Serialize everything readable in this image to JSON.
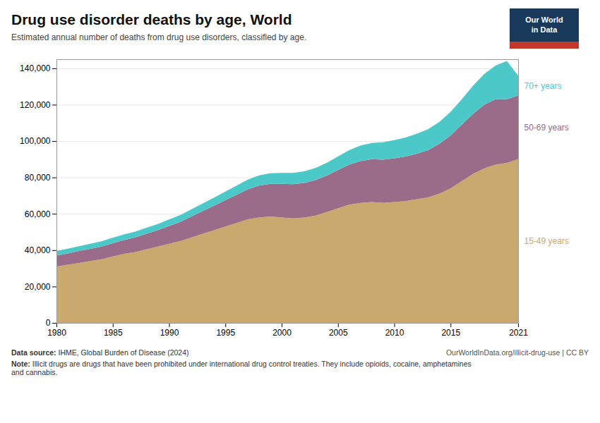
{
  "chart_data": {
    "type": "area",
    "stacked": true,
    "title": "Drug use disorder deaths by age, World",
    "subtitle": "Estimated annual number of deaths from drug use disorders, classified by age.",
    "source_label": "Data source:",
    "source": "IHME, Global Burden of Disease (2024)",
    "credit": "OurWorldInData.org/illicit-drug-use | CC BY",
    "note_label": "Note:",
    "note": "Illicit drugs are drugs that have been prohibited under international drug control treaties. They include opioids, cocaine, amphetamines\nand cannabis.",
    "logo": {
      "text": [
        "Our World",
        "in Data"
      ],
      "colors": [
        "#1a3a5c",
        "#c0392b"
      ]
    },
    "x": [
      1980,
      1981,
      1982,
      1983,
      1984,
      1985,
      1986,
      1987,
      1988,
      1989,
      1990,
      1991,
      1992,
      1993,
      1994,
      1995,
      1996,
      1997,
      1998,
      1999,
      2000,
      2001,
      2002,
      2003,
      2004,
      2005,
      2006,
      2007,
      2008,
      2009,
      2010,
      2011,
      2012,
      2013,
      2014,
      2015,
      2016,
      2017,
      2018,
      2019,
      2020,
      2021
    ],
    "series": [
      {
        "name": "15-49 years",
        "color": "#C9A96E",
        "values": [
          31000,
          32000,
          33000,
          34000,
          35000,
          36500,
          38000,
          39000,
          40500,
          42000,
          43500,
          45000,
          47000,
          49000,
          51000,
          53000,
          55000,
          57000,
          58000,
          58500,
          58000,
          57500,
          58000,
          59000,
          61000,
          63000,
          65000,
          66000,
          66500,
          66000,
          66500,
          67000,
          68000,
          69000,
          71000,
          74000,
          78000,
          82000,
          85000,
          87000,
          88000,
          90000
        ]
      },
      {
        "name": "50-69 years",
        "color": "#9B6B8A",
        "values": [
          6000,
          6200,
          6500,
          6700,
          7000,
          7300,
          7600,
          8000,
          8500,
          9000,
          9800,
          10500,
          11500,
          12500,
          13500,
          14500,
          15500,
          16500,
          17500,
          18000,
          18500,
          18800,
          19000,
          19500,
          20000,
          21000,
          22000,
          23000,
          23500,
          23800,
          24000,
          24500,
          25000,
          26000,
          27500,
          29000,
          31000,
          33000,
          35000,
          36000,
          35000,
          35000
        ]
      },
      {
        "name": "70+ years",
        "color": "#4DC8C8",
        "values": [
          2500,
          2600,
          2700,
          2800,
          2900,
          3000,
          3100,
          3200,
          3300,
          3400,
          3600,
          3800,
          4000,
          4200,
          4400,
          4700,
          5000,
          5300,
          5600,
          5800,
          6000,
          6200,
          6400,
          6700,
          7000,
          7500,
          8000,
          8500,
          9000,
          9500,
          10000,
          10500,
          11000,
          11500,
          12000,
          13000,
          14000,
          15500,
          17000,
          18500,
          21000,
          11000
        ]
      }
    ],
    "xlim": [
      1980,
      2021
    ],
    "xticks": [
      1980,
      1985,
      1990,
      1995,
      2000,
      2005,
      2010,
      2015,
      2021
    ],
    "ylim": [
      0,
      145000
    ],
    "yticks": [
      0,
      {
        "value": 20000,
        "label": "20,000"
      },
      {
        "value": 40000,
        "label": "40,000"
      },
      {
        "value": 60000,
        "label": "60,000"
      },
      {
        "value": 80000,
        "label": "80,000"
      },
      {
        "value": 100000,
        "label": "100,000"
      },
      {
        "value": 120000,
        "label": "120,000"
      },
      {
        "value": 140000,
        "label": "140,000"
      }
    ],
    "grid": true
  }
}
